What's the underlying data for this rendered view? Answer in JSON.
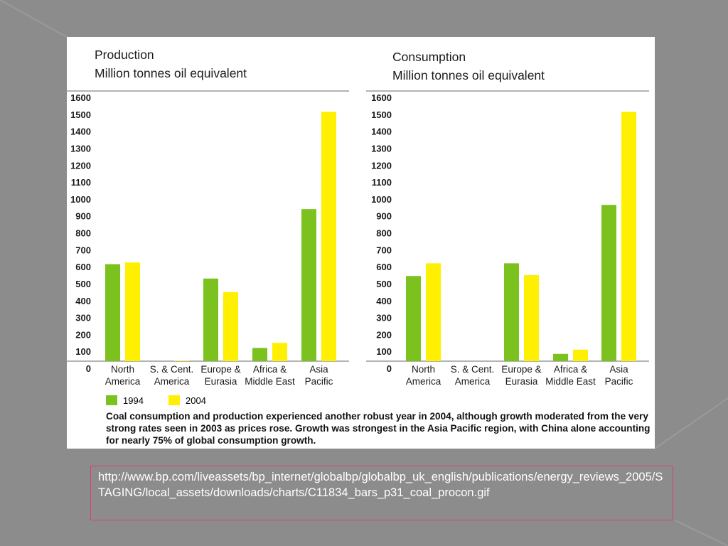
{
  "colors": {
    "background": "#8c8c8c",
    "panel": "#ffffff",
    "series_1994": "#7cc21e",
    "series_2004": "#ffef00",
    "url_border": "#d8407a"
  },
  "chart_data": [
    {
      "type": "bar",
      "title": "Production",
      "subtitle": "Million tonnes oil equivalent",
      "categories": [
        [
          "North",
          "America"
        ],
        [
          "S. & Cent.",
          "America"
        ],
        [
          "Europe &",
          "Eurasia"
        ],
        [
          "Africa &",
          "Middle East"
        ],
        [
          "Asia",
          "Pacific"
        ]
      ],
      "series": [
        {
          "name": "1994",
          "values": [
            615,
            25,
            530,
            120,
            940
          ]
        },
        {
          "name": "2004",
          "values": [
            625,
            45,
            450,
            150,
            1515
          ]
        }
      ],
      "ylim": [
        0,
        1600
      ],
      "yticks": [
        "0",
        "100",
        "200",
        "300",
        "400",
        "500",
        "600",
        "700",
        "800",
        "900",
        "1000",
        "1100",
        "1200",
        "1300",
        "1400",
        "1500",
        "1600"
      ],
      "grid": false
    },
    {
      "type": "bar",
      "title": "Consumption",
      "subtitle": "Million tonnes oil equivalent",
      "categories": [
        [
          "North",
          "America"
        ],
        [
          "S. & Cent.",
          "America"
        ],
        [
          "Europe &",
          "Eurasia"
        ],
        [
          "Africa &",
          "Middle East"
        ],
        [
          "Asia",
          "Pacific"
        ]
      ],
      "series": [
        {
          "name": "1994",
          "values": [
            545,
            20,
            620,
            85,
            965
          ]
        },
        {
          "name": "2004",
          "values": [
            620,
            20,
            550,
            110,
            1515
          ]
        }
      ],
      "ylim": [
        0,
        1600
      ],
      "yticks": [
        "0",
        "100",
        "200",
        "300",
        "400",
        "500",
        "600",
        "700",
        "800",
        "900",
        "1000",
        "1100",
        "1200",
        "1300",
        "1400",
        "1500",
        "1600"
      ],
      "grid": false
    }
  ],
  "legend": {
    "label_1994": "1994",
    "label_2004": "2004",
    "placement": "bottom-left"
  },
  "caption": "Coal consumption and production experienced another robust year in 2004, although growth moderated from the very strong rates seen in 2003 as prices rose.  Growth was strongest in the Asia Pacific region, with China alone accounting for nearly 75% of global consumption growth.",
  "source_url": "http://www.bp.com/liveassets/bp_internet/globalbp/globalbp_uk_english/publications/energy_reviews_2005/STAGING/local_assets/downloads/charts/C11834_bars_p31_coal_procon.gif"
}
